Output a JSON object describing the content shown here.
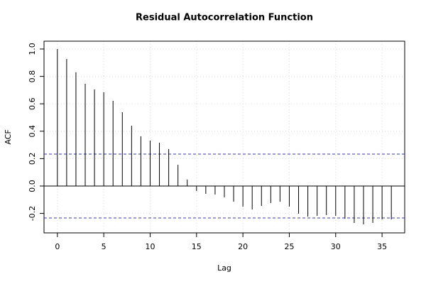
{
  "chart_data": {
    "type": "acf",
    "title": "Residual Autocorrelation Function",
    "x_label": "Lag",
    "y_label": "ACF",
    "x": [
      0,
      1,
      2,
      3,
      4,
      5,
      6,
      7,
      8,
      9,
      10,
      11,
      12,
      13,
      14,
      15,
      16,
      17,
      18,
      19,
      20,
      21,
      22,
      23,
      24,
      25,
      26,
      27,
      28,
      29,
      30,
      31,
      32,
      33,
      34,
      35,
      36
    ],
    "values": [
      1.0,
      0.927,
      0.83,
      0.746,
      0.705,
      0.684,
      0.622,
      0.539,
      0.44,
      0.363,
      0.332,
      0.316,
      0.27,
      0.155,
      0.047,
      -0.036,
      -0.057,
      -0.062,
      -0.083,
      -0.114,
      -0.15,
      -0.171,
      -0.145,
      -0.124,
      -0.114,
      -0.15,
      -0.202,
      -0.223,
      -0.218,
      -0.212,
      -0.218,
      -0.238,
      -0.269,
      -0.28,
      -0.269,
      -0.244,
      -0.244
    ],
    "color": "#000000",
    "confidence_bounds": [
      0.233,
      -0.233
    ],
    "confidence_color": "#3333cc",
    "xlim": [
      -1.44,
      37.44
    ],
    "xticks": [
      0,
      5,
      10,
      15,
      20,
      25,
      30,
      35
    ],
    "ylim": [
      -0.342,
      1.057
    ],
    "yticks": [
      -0.2,
      {
        "value": 0,
        "label": "0.0"
      },
      0.2,
      0.4,
      0.6,
      0.8,
      {
        "value": 1,
        "label": "1.0"
      }
    ],
    "grid": true
  }
}
